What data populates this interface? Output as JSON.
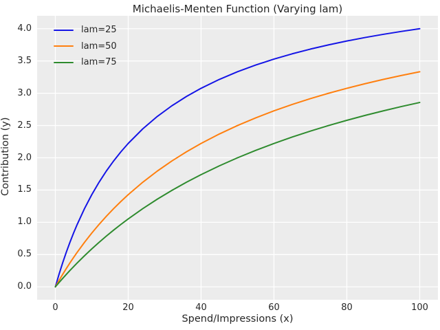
{
  "figure": {
    "background": "#ffffff",
    "plot_background": "#ececec",
    "grid_color": "#ffffff",
    "text_color": "#262626"
  },
  "chart_data": {
    "type": "line",
    "title": "Michaelis-Menten Function (Varying lam)",
    "xlabel": "Spend/Impressions (x)",
    "ylabel": "Contribution (y)",
    "xlim": [
      -5,
      105
    ],
    "ylim": [
      -0.2,
      4.2
    ],
    "x_ticks": [
      0,
      20,
      40,
      60,
      80,
      100
    ],
    "x_tick_labels": [
      "0",
      "20",
      "40",
      "60",
      "80",
      "100"
    ],
    "y_ticks": [
      0,
      0.5,
      1,
      1.5,
      2,
      2.5,
      3,
      3.5,
      4
    ],
    "y_tick_labels": [
      "0.0",
      "0.5",
      "1.0",
      "1.5",
      "2.0",
      "2.5",
      "3.0",
      "3.5",
      "4.0"
    ],
    "grid": true,
    "legend_position": "upper-left",
    "function": "y = 5 * x / (lam + x)",
    "x": [
      0,
      1,
      2,
      3,
      4,
      5,
      6,
      8,
      10,
      12,
      14,
      16,
      18,
      20,
      24,
      28,
      32,
      36,
      40,
      45,
      50,
      55,
      60,
      65,
      70,
      75,
      80,
      85,
      90,
      95,
      100
    ],
    "series": [
      {
        "name": "lam=25",
        "lam": 25,
        "color": "#1414e6",
        "values": [
          0,
          0.1923,
          0.3704,
          0.5357,
          0.6897,
          0.8333,
          0.9677,
          1.2121,
          1.4286,
          1.6216,
          1.7949,
          1.9512,
          2.093,
          2.2222,
          2.449,
          2.6415,
          2.807,
          2.9508,
          3.0769,
          3.2143,
          3.3333,
          3.4375,
          3.5294,
          3.6111,
          3.6842,
          3.75,
          3.8095,
          3.8636,
          3.913,
          3.9583,
          4.0
        ]
      },
      {
        "name": "lam=50",
        "lam": 50,
        "color": "#ff7f0e",
        "values": [
          0,
          0.098,
          0.1923,
          0.283,
          0.3704,
          0.4545,
          0.5357,
          0.6897,
          0.8333,
          0.9677,
          1.0938,
          1.2121,
          1.3235,
          1.4286,
          1.6216,
          1.7949,
          1.9512,
          2.093,
          2.2222,
          2.3684,
          2.5,
          2.619,
          2.7273,
          2.8261,
          2.9167,
          3.0,
          3.0769,
          3.1481,
          3.2143,
          3.2759,
          3.3333
        ]
      },
      {
        "name": "lam=75",
        "lam": 75,
        "color": "#2e8b2e",
        "values": [
          0,
          0.0658,
          0.1299,
          0.1923,
          0.2532,
          0.3125,
          0.3704,
          0.4819,
          0.5882,
          0.6897,
          0.7865,
          0.8791,
          0.9677,
          1.0526,
          1.2121,
          1.3592,
          1.4953,
          1.6216,
          1.7391,
          1.875,
          2.0,
          2.1154,
          2.2222,
          2.3214,
          2.4138,
          2.5,
          2.5806,
          2.6563,
          2.7273,
          2.7941,
          2.8571
        ]
      }
    ]
  }
}
